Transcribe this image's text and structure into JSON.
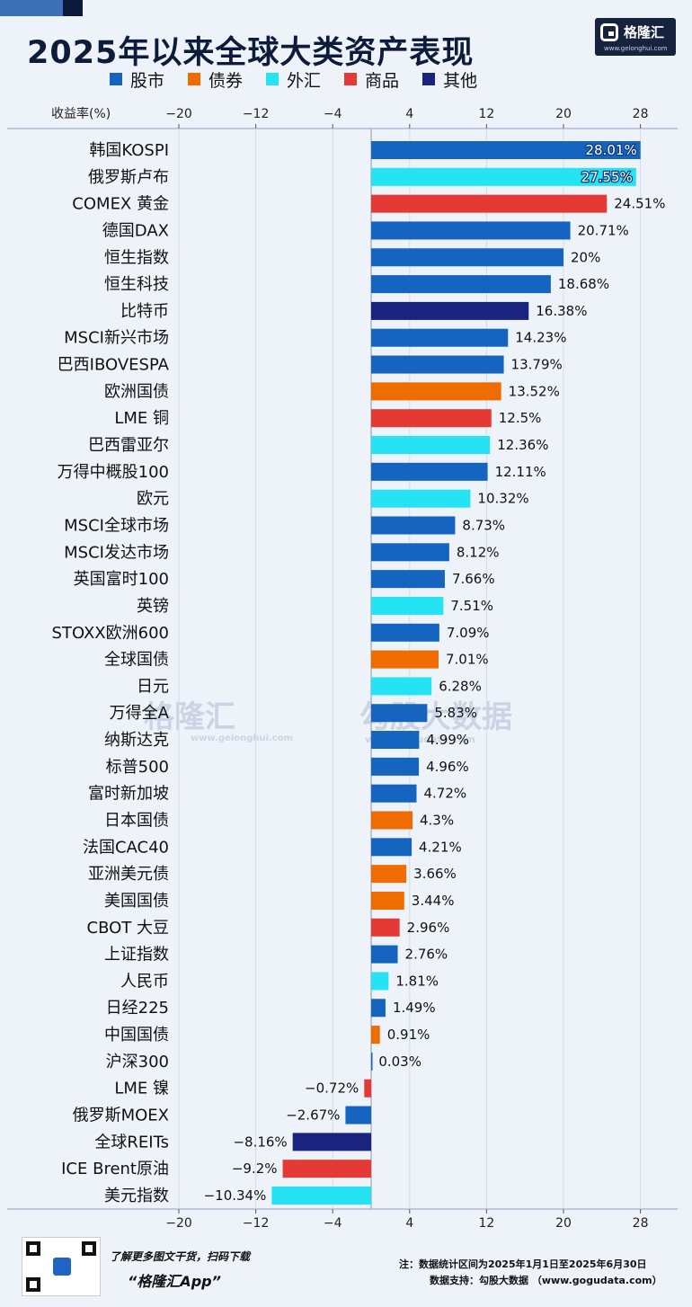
{
  "header": {
    "title": "2025年以来全球大类资产表现",
    "logo_name": "格隆汇",
    "logo_url": "www.gelonghui.com"
  },
  "legend": [
    {
      "label": "股市",
      "color": "#1565c0"
    },
    {
      "label": "债券",
      "color": "#ef6c00"
    },
    {
      "label": "外汇",
      "color": "#26e3f4"
    },
    {
      "label": "商品",
      "color": "#e53935"
    },
    {
      "label": "其他",
      "color": "#1a237e"
    }
  ],
  "watermark": {
    "brand1": "格隆汇",
    "brand1_url": "www.gelonghui.com",
    "brand2": "勾股大数据",
    "brand2_url": "www.gogudata.com"
  },
  "chart_data": {
    "type": "bar",
    "orientation": "horizontal",
    "xlabel": "收益率(%)",
    "xlim": [
      -20,
      32
    ],
    "xticks": [
      -20,
      -12,
      -4,
      4,
      12,
      20,
      28
    ],
    "tick_labels": [
      "−20",
      "−12",
      "−4",
      "4",
      "12",
      "20",
      "28"
    ],
    "grid": true,
    "legend_position": "top",
    "categories": [
      "韩国KOSPI",
      "俄罗斯卢布",
      "COMEX 黄金",
      "德国DAX",
      "恒生指数",
      "恒生科技",
      "比特币",
      "MSCI新兴市场",
      "巴西IBOVESPA",
      "欧洲国债",
      "LME 铜",
      "巴西雷亚尔",
      "万得中概股100",
      "欧元",
      "MSCI全球市场",
      "MSCI发达市场",
      "英国富时100",
      "英镑",
      "STOXX欧洲600",
      "全球国债",
      "日元",
      "万得全A",
      "纳斯达克",
      "标普500",
      "富时新加坡",
      "日本国债",
      "法国CAC40",
      "亚洲美元债",
      "美国国债",
      "CBOT 大豆",
      "上证指数",
      "人民币",
      "日经225",
      "中国国债",
      "沪深300",
      "LME 镍",
      "俄罗斯MOEX",
      "全球REITs",
      "ICE Brent原油",
      "美元指数"
    ],
    "values": [
      28.01,
      27.55,
      24.51,
      20.71,
      20,
      18.68,
      16.38,
      14.23,
      13.79,
      13.52,
      12.5,
      12.36,
      12.11,
      10.32,
      8.73,
      8.12,
      7.66,
      7.51,
      7.09,
      7.01,
      6.28,
      5.83,
      4.99,
      4.96,
      4.72,
      4.3,
      4.21,
      3.66,
      3.44,
      2.96,
      2.76,
      1.81,
      1.49,
      0.91,
      0.03,
      -0.72,
      -2.67,
      -8.16,
      -9.2,
      -10.34
    ],
    "value_labels": [
      "28.01%",
      "27.55%",
      "24.51%",
      "20.71%",
      "20%",
      "18.68%",
      "16.38%",
      "14.23%",
      "13.79%",
      "13.52%",
      "12.5%",
      "12.36%",
      "12.11%",
      "10.32%",
      "8.73%",
      "8.12%",
      "7.66%",
      "7.51%",
      "7.09%",
      "7.01%",
      "6.28%",
      "5.83%",
      "4.99%",
      "4.96%",
      "4.72%",
      "4.3%",
      "4.21%",
      "3.66%",
      "3.44%",
      "2.96%",
      "2.76%",
      "1.81%",
      "1.49%",
      "0.91%",
      "0.03%",
      "−0.72%",
      "−2.67%",
      "−8.16%",
      "−9.2%",
      "−10.34%"
    ],
    "asset_class": [
      "股市",
      "外汇",
      "商品",
      "股市",
      "股市",
      "股市",
      "其他",
      "股市",
      "股市",
      "债券",
      "商品",
      "外汇",
      "股市",
      "外汇",
      "股市",
      "股市",
      "股市",
      "外汇",
      "股市",
      "债券",
      "外汇",
      "股市",
      "股市",
      "股市",
      "股市",
      "债券",
      "股市",
      "债券",
      "债券",
      "商品",
      "股市",
      "外汇",
      "股市",
      "债券",
      "股市",
      "商品",
      "股市",
      "其他",
      "商品",
      "外汇"
    ]
  },
  "footer": {
    "promo_line": "了解更多图文干货，扫码下载",
    "app_name": "“格隆汇App”",
    "note": "注：数据统计区间为2025年1月1日至2025年6月30日",
    "source": "数据支持：勾股大数据 （www.gogudata.com）"
  }
}
